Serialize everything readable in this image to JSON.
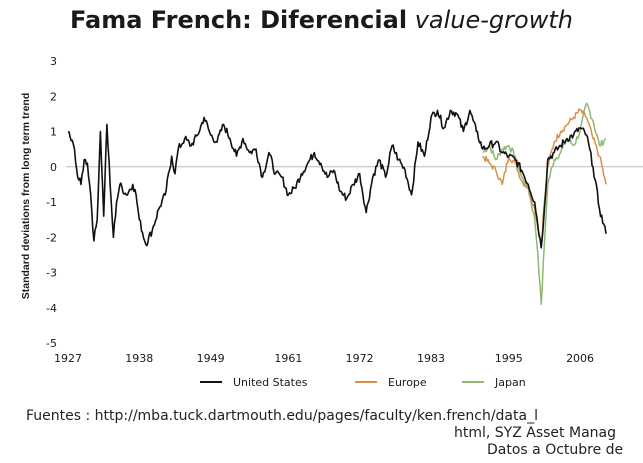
{
  "title": {
    "main": "Fama French: Diferencial",
    "emphasis": "value-growth"
  },
  "source": {
    "line1": "Fuentes :  http://mba.tuck.dartmouth.edu/pages/faculty/ken.french/data_l",
    "line2": "html, SYZ Asset Manag",
    "line3": "Datos a Octubre de"
  },
  "colors": {
    "United States": "#111111",
    "Europe": "#d8914a",
    "Japan": "#8fb870",
    "zero_line": "#bbbbbb"
  },
  "chart_data": {
    "type": "line",
    "title": "Fama French: Diferencial value-growth",
    "xlabel": "",
    "ylabel": "Standard deviations from long term trend",
    "xlim": [
      1927,
      2010
    ],
    "ylim": [
      -5,
      3
    ],
    "x_ticks": [
      1927,
      1938,
      1949,
      1961,
      1972,
      1983,
      1995,
      2006
    ],
    "y_ticks": [
      3,
      2,
      1,
      0,
      -1,
      -2,
      -3,
      -4,
      -5
    ],
    "reference_line": 0,
    "legend_position": "bottom",
    "series": [
      {
        "name": "United States",
        "points": [
          [
            1927,
            1.0
          ],
          [
            1928,
            0.5
          ],
          [
            1928.5,
            -0.3
          ],
          [
            1929,
            -0.5
          ],
          [
            1929.5,
            0.2
          ],
          [
            1930,
            0.1
          ],
          [
            1930.5,
            -0.8
          ],
          [
            1931,
            -2.1
          ],
          [
            1931.5,
            -1.5
          ],
          [
            1932,
            1.0
          ],
          [
            1932.5,
            -1.4
          ],
          [
            1933,
            1.2
          ],
          [
            1933.5,
            -0.5
          ],
          [
            1934,
            -2.0
          ],
          [
            1934.5,
            -1.0
          ],
          [
            1935,
            -0.5
          ],
          [
            1936,
            -0.8
          ],
          [
            1937,
            -0.5
          ],
          [
            1937.5,
            -0.8
          ],
          [
            1938,
            -1.5
          ],
          [
            1939,
            -2.2
          ],
          [
            1940,
            -1.8
          ],
          [
            1941,
            -1.2
          ],
          [
            1942,
            -0.8
          ],
          [
            1943,
            0.3
          ],
          [
            1943.5,
            -0.2
          ],
          [
            1944,
            0.5
          ],
          [
            1945,
            0.8
          ],
          [
            1946,
            0.6
          ],
          [
            1947,
            0.9
          ],
          [
            1948,
            1.4
          ],
          [
            1949,
            0.9
          ],
          [
            1950,
            0.7
          ],
          [
            1951,
            1.2
          ],
          [
            1952,
            0.8
          ],
          [
            1953,
            0.3
          ],
          [
            1954,
            0.8
          ],
          [
            1955,
            0.4
          ],
          [
            1956,
            0.5
          ],
          [
            1957,
            -0.3
          ],
          [
            1958,
            0.4
          ],
          [
            1959,
            -0.2
          ],
          [
            1960,
            -0.3
          ],
          [
            1961,
            -0.8
          ],
          [
            1962,
            -0.6
          ],
          [
            1963,
            -0.2
          ],
          [
            1964,
            0.1
          ],
          [
            1965,
            0.4
          ],
          [
            1966,
            0.1
          ],
          [
            1967,
            -0.3
          ],
          [
            1968,
            -0.1
          ],
          [
            1969,
            -0.7
          ],
          [
            1970,
            -0.9
          ],
          [
            1971,
            -0.5
          ],
          [
            1972,
            -0.2
          ],
          [
            1973,
            -1.3
          ],
          [
            1974,
            -0.3
          ],
          [
            1975,
            0.2
          ],
          [
            1976,
            -0.3
          ],
          [
            1977,
            0.6
          ],
          [
            1978,
            0.2
          ],
          [
            1979,
            -0.1
          ],
          [
            1980,
            -0.8
          ],
          [
            1981,
            0.7
          ],
          [
            1982,
            0.3
          ],
          [
            1983,
            1.4
          ],
          [
            1984,
            1.6
          ],
          [
            1985,
            1.1
          ],
          [
            1986,
            1.6
          ],
          [
            1987,
            1.5
          ],
          [
            1988,
            1.0
          ],
          [
            1989,
            1.6
          ],
          [
            1990,
            1.0
          ],
          [
            1991,
            0.5
          ],
          [
            1992,
            0.6
          ],
          [
            1993,
            0.7
          ],
          [
            1994,
            0.4
          ],
          [
            1995,
            0.3
          ],
          [
            1996,
            0.2
          ],
          [
            1997,
            -0.1
          ],
          [
            1998,
            -0.5
          ],
          [
            1999,
            -1.0
          ],
          [
            2000,
            -2.3
          ],
          [
            2000.5,
            -1.2
          ],
          [
            2001,
            0.2
          ],
          [
            2002,
            0.4
          ],
          [
            2003,
            0.6
          ],
          [
            2004,
            0.8
          ],
          [
            2005,
            0.9
          ],
          [
            2006,
            1.1
          ],
          [
            2007,
            0.9
          ],
          [
            2008,
            0.0
          ],
          [
            2009,
            -1.2
          ],
          [
            2010,
            -1.9
          ]
        ]
      },
      {
        "name": "Europe",
        "points": [
          [
            1991,
            0.3
          ],
          [
            1992,
            0.1
          ],
          [
            1993,
            -0.1
          ],
          [
            1994,
            -0.5
          ],
          [
            1995,
            0.3
          ],
          [
            1996,
            0.1
          ],
          [
            1997,
            -0.4
          ],
          [
            1998,
            -0.6
          ],
          [
            1999,
            -1.2
          ],
          [
            2000,
            -2.2
          ],
          [
            2000.5,
            -1.0
          ],
          [
            2001,
            0.0
          ],
          [
            2002,
            0.7
          ],
          [
            2003,
            1.0
          ],
          [
            2004,
            1.2
          ],
          [
            2005,
            1.4
          ],
          [
            2006,
            1.6
          ],
          [
            2007,
            1.4
          ],
          [
            2008,
            0.8
          ],
          [
            2009,
            0.3
          ],
          [
            2010,
            -0.5
          ]
        ]
      },
      {
        "name": "Japan",
        "points": [
          [
            1991,
            0.4
          ],
          [
            1992,
            0.6
          ],
          [
            1993,
            0.2
          ],
          [
            1994,
            0.5
          ],
          [
            1995,
            0.6
          ],
          [
            1996,
            0.3
          ],
          [
            1997,
            -0.3
          ],
          [
            1998,
            -0.6
          ],
          [
            1999,
            -1.5
          ],
          [
            1999.5,
            -2.5
          ],
          [
            2000,
            -3.9
          ],
          [
            2000.5,
            -2.2
          ],
          [
            2001,
            -0.5
          ],
          [
            2002,
            0.2
          ],
          [
            2003,
            0.4
          ],
          [
            2004,
            0.8
          ],
          [
            2005,
            0.6
          ],
          [
            2006,
            1.0
          ],
          [
            2007,
            1.8
          ],
          [
            2008,
            1.3
          ],
          [
            2009,
            0.6
          ],
          [
            2010,
            0.8
          ]
        ]
      }
    ]
  }
}
